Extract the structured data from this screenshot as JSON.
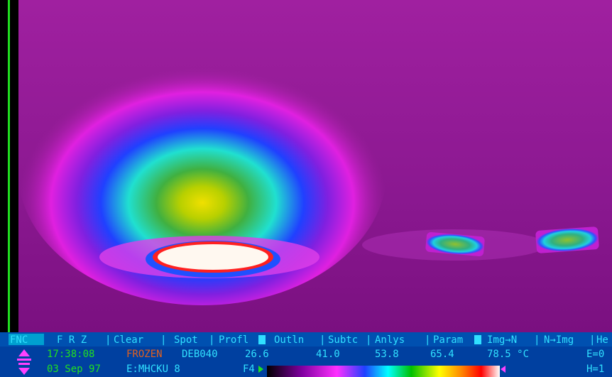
{
  "menu": {
    "items": [
      "FNC",
      "F R Z",
      "Clear",
      "Spot",
      "Profl",
      "Outln",
      "Subtc",
      "Anlys",
      "Param",
      "Img→N",
      "N→Img",
      "He"
    ]
  },
  "status": {
    "time": "17:38:08",
    "state": "FROZEN",
    "file": "DEB040",
    "scale": [
      "26.6",
      "41.0",
      "53.8",
      "65.4",
      "78.5 °C"
    ],
    "emissivity": "E=0",
    "date": "03 Sep 97",
    "path": "E:MHCKU 8",
    "key": "F4",
    "h": "H=1"
  }
}
